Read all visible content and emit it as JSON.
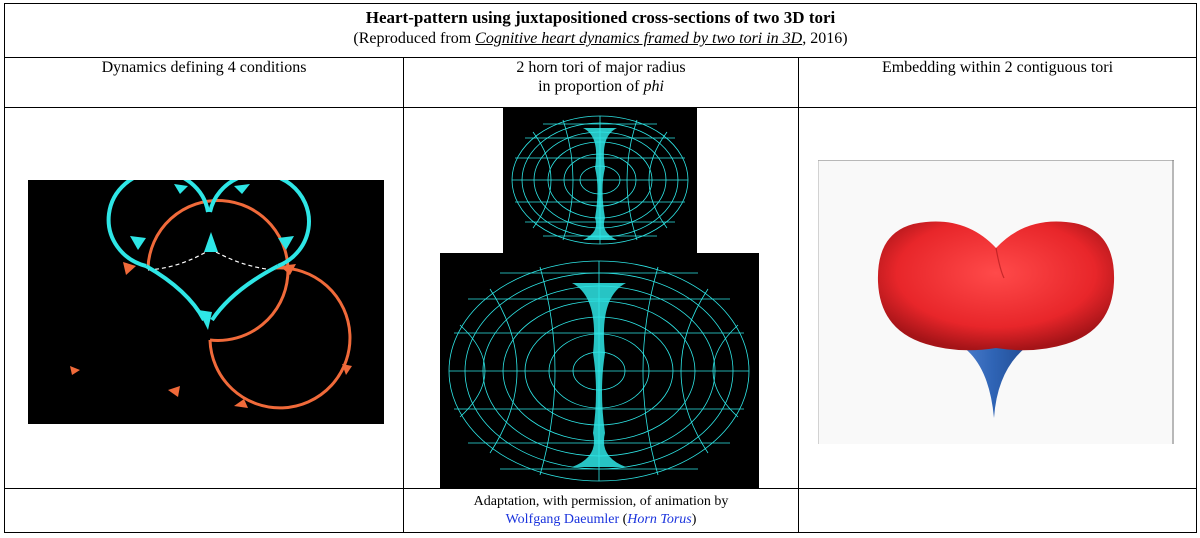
{
  "title": "Heart-pattern using juxtapositioned cross-sections of two 3D tori",
  "subtitle": {
    "prefix": "(Reproduced from ",
    "link": "Cognitive heart dynamics framed by two tori in 3D",
    "suffix": ", 2016)"
  },
  "columns": [
    {
      "header_line1": "Dynamics defining 4 conditions",
      "header_line2": ""
    },
    {
      "header_line1": "2 horn tori of major radius",
      "header_line2_prefix": "in proportion of ",
      "header_line2_italic": "phi"
    },
    {
      "header_line1": "Embedding within 2 contiguous tori",
      "header_line2": ""
    }
  ],
  "footer": {
    "line1": "Adaptation, with permission, of animation by",
    "author": "Wolfgang Daeumler",
    "paren_open": " (",
    "work": "Horn Torus",
    "paren_close": ")"
  },
  "colors": {
    "cyan": "#2ee6e6",
    "orange": "#f06a3a",
    "heart_red": "#e8262a",
    "spike_blue": "#2f64b5",
    "link_blue": "#1a33dd"
  }
}
